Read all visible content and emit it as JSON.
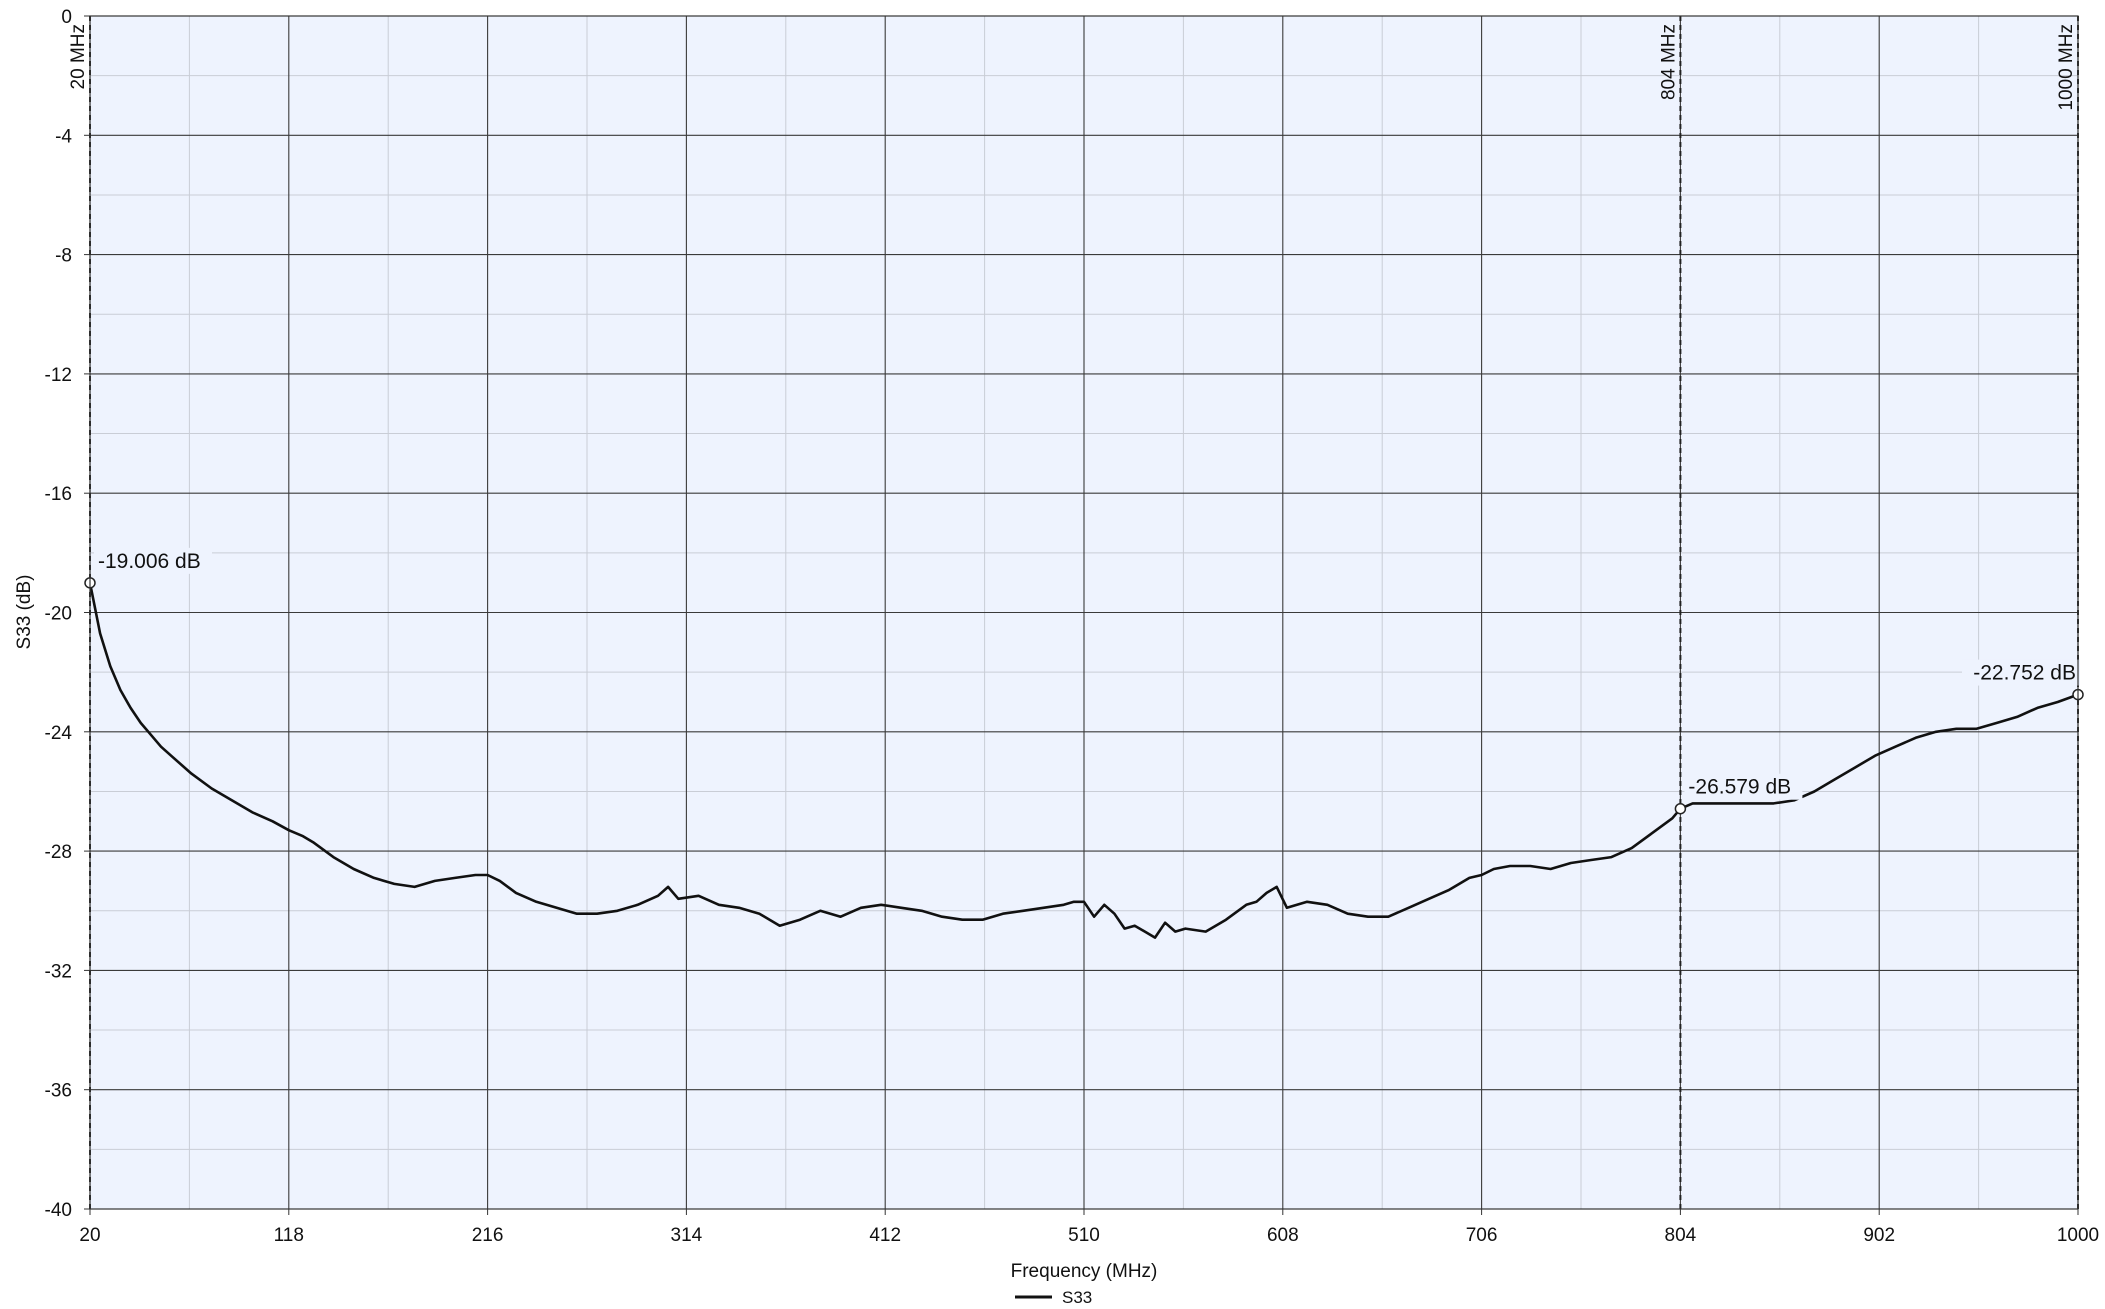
{
  "chart_data": {
    "type": "line",
    "title": "",
    "xlabel": "Frequency (MHz)",
    "ylabel": "S33 (dB)",
    "xlim": [
      20,
      1000
    ],
    "ylim": [
      -40,
      0
    ],
    "x_ticks": [
      20,
      118,
      216,
      314,
      412,
      510,
      608,
      706,
      804,
      902,
      1000
    ],
    "x_tick_labels": [
      "20",
      "118",
      "216",
      "314",
      "412",
      "510",
      "608",
      "706",
      "804",
      "902",
      "1000"
    ],
    "y_ticks": [
      0,
      -4,
      -8,
      -12,
      -16,
      -20,
      -24,
      -28,
      -32,
      -36,
      -40
    ],
    "y_tick_labels": [
      "0",
      "-4",
      "-8",
      "-12",
      "-16",
      "-20",
      "-24",
      "-28",
      "-32",
      "-36",
      "-40"
    ],
    "grid": true,
    "legend_placement": "bottom-center",
    "series": [
      {
        "name": "S33",
        "color": "#111111",
        "x": [
          20,
          25,
          30,
          35,
          40,
          45,
          50,
          55,
          60,
          70,
          80,
          90,
          100,
          110,
          118,
          125,
          130,
          140,
          150,
          160,
          170,
          180,
          190,
          200,
          210,
          216,
          222,
          230,
          240,
          250,
          260,
          270,
          280,
          290,
          300,
          305,
          310,
          320,
          330,
          340,
          350,
          360,
          370,
          380,
          390,
          400,
          410,
          420,
          430,
          440,
          450,
          460,
          470,
          480,
          490,
          500,
          505,
          510,
          515,
          520,
          525,
          530,
          535,
          540,
          545,
          550,
          555,
          560,
          570,
          580,
          590,
          595,
          600,
          605,
          610,
          620,
          630,
          640,
          650,
          660,
          670,
          680,
          690,
          700,
          706,
          712,
          720,
          730,
          740,
          750,
          760,
          770,
          780,
          790,
          800,
          804,
          810,
          820,
          830,
          840,
          850,
          860,
          870,
          880,
          890,
          900,
          910,
          920,
          930,
          940,
          950,
          960,
          970,
          980,
          990,
          1000
        ],
        "y": [
          -19.006,
          -20.7,
          -21.8,
          -22.6,
          -23.2,
          -23.7,
          -24.1,
          -24.5,
          -24.8,
          -25.4,
          -25.9,
          -26.3,
          -26.7,
          -27.0,
          -27.3,
          -27.5,
          -27.7,
          -28.2,
          -28.6,
          -28.9,
          -29.1,
          -29.2,
          -29.0,
          -28.9,
          -28.8,
          -28.8,
          -29.0,
          -29.4,
          -29.7,
          -29.9,
          -30.1,
          -30.1,
          -30.0,
          -29.8,
          -29.5,
          -29.2,
          -29.6,
          -29.5,
          -29.8,
          -29.9,
          -30.1,
          -30.5,
          -30.3,
          -30.0,
          -30.2,
          -29.9,
          -29.8,
          -29.9,
          -30.0,
          -30.2,
          -30.3,
          -30.3,
          -30.1,
          -30.0,
          -29.9,
          -29.8,
          -29.7,
          -29.7,
          -30.2,
          -29.8,
          -30.1,
          -30.6,
          -30.5,
          -30.7,
          -30.9,
          -30.4,
          -30.7,
          -30.6,
          -30.7,
          -30.3,
          -29.8,
          -29.7,
          -29.4,
          -29.2,
          -29.9,
          -29.7,
          -29.8,
          -30.1,
          -30.2,
          -30.2,
          -29.9,
          -29.6,
          -29.3,
          -28.9,
          -28.8,
          -28.6,
          -28.5,
          -28.5,
          -28.6,
          -28.4,
          -28.3,
          -28.2,
          -27.9,
          -27.4,
          -26.9,
          -26.579,
          -26.4,
          -26.4,
          -26.4,
          -26.4,
          -26.4,
          -26.3,
          -26.0,
          -25.6,
          -25.2,
          -24.8,
          -24.5,
          -24.2,
          -24.0,
          -23.9,
          -23.9,
          -23.7,
          -23.5,
          -23.2,
          -23.0,
          -22.752
        ]
      }
    ],
    "marker_lines": [
      {
        "x": 20,
        "label": "20 MHz"
      },
      {
        "x": 804,
        "label": "804 MHz"
      },
      {
        "x": 1000,
        "label": "1000 MHz"
      }
    ],
    "markers": [
      {
        "x": 20,
        "y": -19.006,
        "label": "-19.006 dB"
      },
      {
        "x": 804,
        "y": -26.579,
        "label": "-26.579 dB"
      },
      {
        "x": 1000,
        "y": -22.752,
        "label": "-22.752 dB"
      }
    ]
  }
}
